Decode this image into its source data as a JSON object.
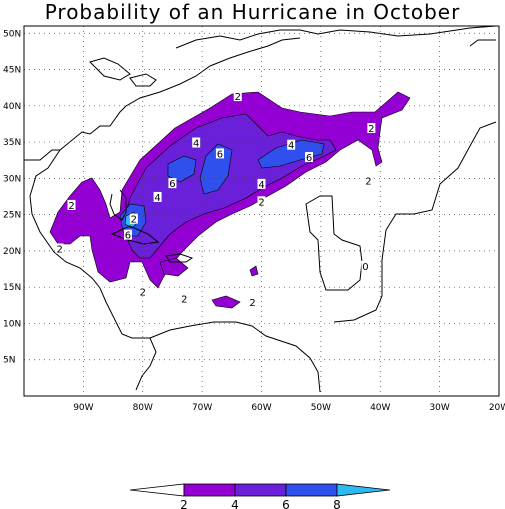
{
  "title": "Probability of an Hurricane in October",
  "lat_labels": [
    "50N",
    "45N",
    "40N",
    "35N",
    "30N",
    "25N",
    "20N",
    "15N",
    "10N",
    "5N"
  ],
  "lon_labels": [
    "90W",
    "80W",
    "70W",
    "60W",
    "50W",
    "40W",
    "30W",
    "20W"
  ],
  "contour_labels": [
    {
      "text": "2",
      "lon": -64,
      "lat": 41.2
    },
    {
      "text": "2",
      "lon": -41.5,
      "lat": 36.8
    },
    {
      "text": "2",
      "lon": -42,
      "lat": 29.6
    },
    {
      "text": "4",
      "lon": -71,
      "lat": 34.8
    },
    {
      "text": "4",
      "lon": -55,
      "lat": 34.5
    },
    {
      "text": "6",
      "lon": -67,
      "lat": 33.3
    },
    {
      "text": "6",
      "lon": -52,
      "lat": 32.8
    },
    {
      "text": "6",
      "lon": -75,
      "lat": 29.2
    },
    {
      "text": "4",
      "lon": -60,
      "lat": 29.1
    },
    {
      "text": "4",
      "lon": -77.5,
      "lat": 27.3
    },
    {
      "text": "2",
      "lon": -60,
      "lat": 26.7
    },
    {
      "text": "2",
      "lon": -92,
      "lat": 26.2
    },
    {
      "text": "2",
      "lon": -81.5,
      "lat": 24.3
    },
    {
      "text": "6",
      "lon": -82.5,
      "lat": 22.1
    },
    {
      "text": "2",
      "lon": -94,
      "lat": 20.2
    },
    {
      "text": "2",
      "lon": -80,
      "lat": 14.3
    },
    {
      "text": "2",
      "lon": -73,
      "lat": 13.3
    },
    {
      "text": "2",
      "lon": -61.5,
      "lat": 12.8
    },
    {
      "text": "0",
      "lon": -42.5,
      "lat": 17.8
    }
  ],
  "colorbar": {
    "tick_labels": [
      "2",
      "4",
      "6",
      "8"
    ],
    "colors": [
      "#ffffff",
      "#9400d3",
      "#6a1fd8",
      "#3050ee",
      "#30b8f0"
    ]
  },
  "map_data": {
    "type": "filled_contour_map",
    "region": {
      "lon": [
        -100,
        -20
      ],
      "lat": [
        0,
        51
      ]
    },
    "levels": [
      2,
      4,
      6,
      8
    ],
    "grid": true,
    "colors": {
      "low": "#ffffff",
      "2-4": "#9400d3",
      "4-6": "#6a1fd8",
      "6-8": "#3050ee",
      "8+": "#30b8f0"
    }
  }
}
